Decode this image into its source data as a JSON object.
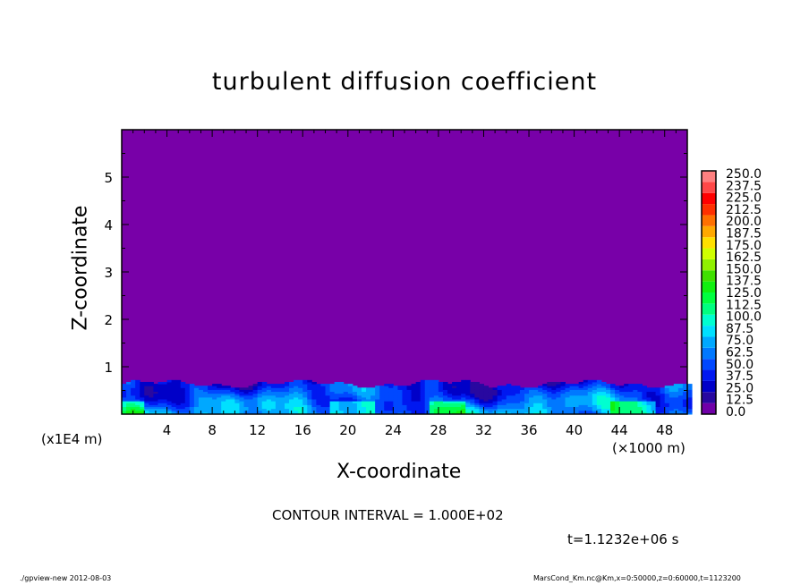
{
  "chart_data": {
    "type": "heatmap",
    "title": "turbulent diffusion coefficient",
    "xlabel": "X-coordinate",
    "ylabel": "Z-coordinate",
    "x_unit_label": "(×1000 m)",
    "y_unit_label": "(x1E4 m)",
    "xlim": [
      0,
      50
    ],
    "ylim": [
      0,
      6
    ],
    "x_ticks": [
      "4",
      "8",
      "12",
      "16",
      "20",
      "24",
      "28",
      "32",
      "36",
      "40",
      "44",
      "48"
    ],
    "y_ticks": [
      "1",
      "2",
      "3",
      "4",
      "5"
    ],
    "colorbar_levels": [
      "0.0",
      "12.5",
      "25.0",
      "37.5",
      "50.0",
      "62.5",
      "75.0",
      "87.5",
      "100.0",
      "112.5",
      "125.0",
      "137.5",
      "150.0",
      "162.5",
      "175.0",
      "187.5",
      "200.0",
      "212.5",
      "225.0",
      "237.5",
      "250.0"
    ],
    "colorbar_colors": [
      "#7000a8",
      "#2808a0",
      "#0000c8",
      "#0018f0",
      "#0048ff",
      "#0078ff",
      "#00a8ff",
      "#00e0ff",
      "#00ffd0",
      "#00ff80",
      "#00ff40",
      "#10f010",
      "#40e000",
      "#90f000",
      "#d0ff00",
      "#ffe000",
      "#ffa800",
      "#ff7000",
      "#ff3000",
      "#ff0000",
      "#ff4848",
      "#ff8080"
    ],
    "background_value_color": "#7800a8",
    "contour_interval_text": "CONTOUR INTERVAL = 1.000E+02",
    "time_text": "t=1.1232e+06 s"
  },
  "footer": {
    "left": "./gpview-new  2012-08-03",
    "right": "MarsCond_Km.nc@Km,x=0:50000,z=0:60000,t=1123200"
  }
}
